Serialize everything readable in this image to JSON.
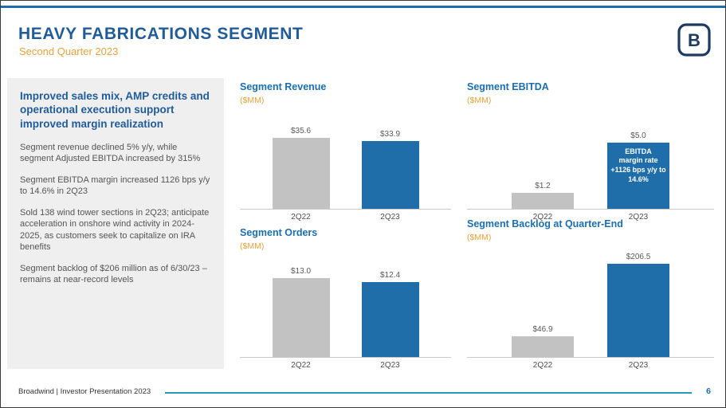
{
  "header": {
    "title": "HEAVY FABRICATIONS SEGMENT",
    "subtitle": "Second Quarter 2023",
    "logo_letter": "B"
  },
  "sidebar": {
    "heading": "Improved sales mix, AMP credits and operational execution support improved margin realization",
    "paragraphs": [
      "Segment revenue declined 5% y/y, while segment Adjusted EBITDA increased by 315%",
      "Segment EBITDA margin increased 1126 bps y/y to 14.6% in 2Q23",
      "Sold 138 wind tower sections in 2Q23; anticipate acceleration in onshore wind activity in 2024-2025, as customers seek to capitalize on IRA benefits",
      "Segment backlog of $206 million as of 6/30/23 – remains at near-record levels"
    ]
  },
  "footer": {
    "text": "Broadwind  | Investor Presentation 2023",
    "page_number": "6"
  },
  "colors": {
    "accent_blue": "#1F6DA9",
    "muted_gray": "#C2C2C2",
    "orange": "#E8A23D",
    "title_blue": "#215C98",
    "footer_teal": "#2596BE"
  },
  "chart_data": [
    {
      "type": "bar",
      "title": "Segment Revenue",
      "unit_label": "($MM)",
      "categories": [
        "2Q22",
        "2Q23"
      ],
      "values": [
        35.6,
        33.9
      ],
      "value_labels": [
        "$35.6",
        "$33.9"
      ],
      "ylim": [
        0,
        40
      ],
      "grid": false,
      "legend": "none"
    },
    {
      "type": "bar",
      "title": "Segment EBITDA",
      "unit_label": "($MM)",
      "categories": [
        "2Q22",
        "2Q23"
      ],
      "values": [
        1.2,
        5.0
      ],
      "value_labels": [
        "$1.2",
        "$5.0"
      ],
      "ylim": [
        0,
        6
      ],
      "grid": false,
      "legend": "none",
      "annotation": {
        "target_index": 1,
        "lines": [
          "EBITDA",
          "margin rate",
          "+1126 bps y/y to",
          "14.6%"
        ]
      }
    },
    {
      "type": "bar",
      "title": "Segment Orders",
      "unit_label": "($MM)",
      "categories": [
        "2Q22",
        "2Q23"
      ],
      "values": [
        13.0,
        12.4
      ],
      "value_labels": [
        "$13.0",
        "$12.4"
      ],
      "ylim": [
        0,
        14.5
      ],
      "grid": false,
      "legend": "none"
    },
    {
      "type": "bar",
      "title": "Segment Backlog at Quarter-End",
      "unit_label": "($MM)",
      "categories": [
        "2Q22",
        "2Q23"
      ],
      "values": [
        46.9,
        206.5
      ],
      "value_labels": [
        "$46.9",
        "$206.5"
      ],
      "ylim": [
        0,
        230
      ],
      "grid": false,
      "legend": "none"
    }
  ]
}
